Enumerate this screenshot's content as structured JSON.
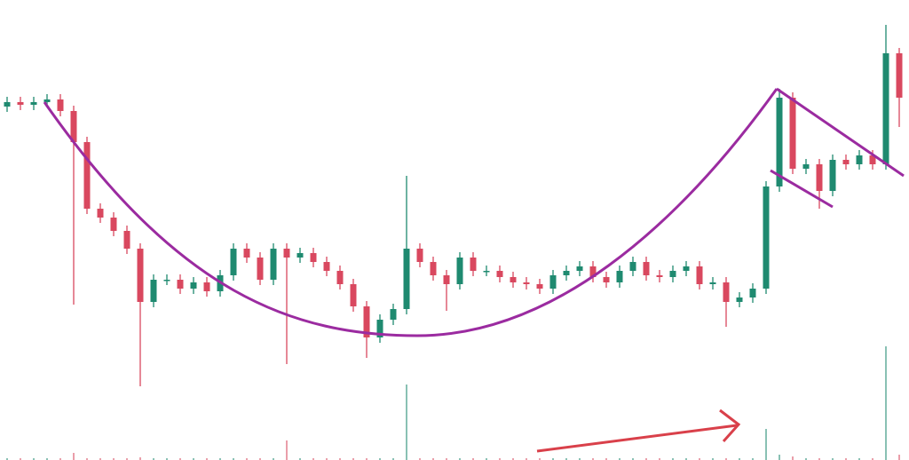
{
  "chart_data": {
    "type": "candlestick",
    "up_color": "#1f8a70",
    "down_color": "#d9485f",
    "ylim": [
      0,
      518
    ],
    "y2lim": [
      0,
      518
    ],
    "open": [
      398,
      403,
      400,
      403,
      406,
      393,
      358,
      283,
      273,
      258,
      238,
      178,
      203,
      203,
      193,
      200,
      190,
      208,
      238,
      228,
      203,
      238,
      228,
      233,
      223,
      213,
      198,
      173,
      138,
      158,
      170,
      238,
      223,
      208,
      198,
      228,
      213,
      213,
      206,
      200,
      198,
      193,
      208,
      213,
      218,
      206,
      200,
      213,
      223,
      208,
      206,
      213,
      218,
      198,
      200,
      178,
      183,
      193,
      308,
      408,
      328,
      333,
      303,
      338,
      333,
      343,
      333,
      458
    ],
    "high": [
      409,
      409,
      409,
      412,
      412,
      399,
      364,
      289,
      279,
      264,
      244,
      209,
      209,
      209,
      206,
      206,
      214,
      244,
      244,
      234,
      244,
      244,
      239,
      239,
      229,
      219,
      204,
      179,
      164,
      176,
      320,
      244,
      229,
      214,
      234,
      234,
      219,
      219,
      212,
      206,
      204,
      214,
      219,
      224,
      224,
      212,
      219,
      229,
      229,
      214,
      219,
      224,
      224,
      206,
      206,
      189,
      199,
      314,
      418,
      414,
      339,
      339,
      344,
      344,
      349,
      349,
      490,
      464
    ],
    "low": [
      392,
      394,
      394,
      397,
      387,
      175,
      277,
      267,
      252,
      232,
      83,
      172,
      197,
      187,
      187,
      184,
      184,
      202,
      222,
      197,
      197,
      108,
      222,
      217,
      207,
      192,
      167,
      115,
      132,
      152,
      164,
      217,
      202,
      168,
      192,
      207,
      207,
      200,
      194,
      192,
      187,
      187,
      202,
      207,
      200,
      194,
      194,
      207,
      202,
      200,
      200,
      207,
      192,
      192,
      150,
      172,
      177,
      187,
      302,
      322,
      322,
      283,
      297,
      327,
      327,
      327,
      327,
      375
    ],
    "close": [
      403,
      400,
      403,
      406,
      393,
      358,
      283,
      273,
      258,
      238,
      178,
      203,
      203,
      193,
      200,
      190,
      208,
      238,
      228,
      203,
      238,
      228,
      233,
      223,
      213,
      198,
      173,
      138,
      158,
      170,
      238,
      223,
      208,
      198,
      228,
      213,
      213,
      206,
      200,
      198,
      193,
      208,
      213,
      218,
      206,
      200,
      213,
      223,
      208,
      206,
      213,
      218,
      198,
      200,
      178,
      183,
      193,
      308,
      408,
      328,
      333,
      303,
      338,
      333,
      343,
      333,
      458,
      408
    ],
    "volume": [
      2,
      2,
      2,
      2,
      2,
      8,
      2,
      2,
      2,
      2,
      3,
      2,
      2,
      2,
      2,
      2,
      2,
      2,
      2,
      2,
      2,
      22,
      2,
      2,
      2,
      2,
      2,
      2,
      2,
      2,
      85,
      2,
      2,
      2,
      2,
      2,
      2,
      2,
      2,
      2,
      2,
      2,
      2,
      2,
      2,
      2,
      2,
      2,
      2,
      2,
      2,
      2,
      2,
      2,
      2,
      2,
      2,
      35,
      6,
      4,
      2,
      2,
      2,
      2,
      2,
      2,
      128,
      6
    ]
  }
}
